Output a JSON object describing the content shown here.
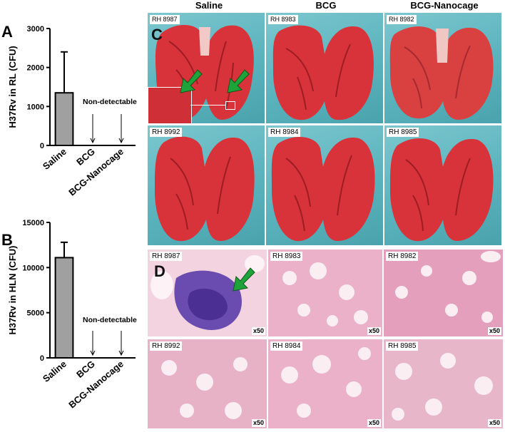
{
  "panels": {
    "a": "A",
    "b": "B",
    "c": "C",
    "d": "D"
  },
  "column_headers": [
    "Saline",
    "BCG",
    "BCG-Nanocage"
  ],
  "lung_images": {
    "row1": [
      "RH 8987",
      "RH 8983",
      "RH 8982"
    ],
    "row2": [
      "RH 8992",
      "RH 8984",
      "RH 8985"
    ]
  },
  "histology_images": {
    "row1": [
      "RH 8987",
      "RH 8983",
      "RH 8982"
    ],
    "row2": [
      "RH 8992",
      "RH 8984",
      "RH 8985"
    ],
    "magnification": "x50"
  },
  "colors": {
    "bar_fill": "#a0a0a0",
    "arrow_green": "#1ea33a",
    "lung_tissue": "#d8323a",
    "background_blue": "#5bb3bd",
    "he_stain": "#f0b8cf"
  },
  "chart_data": [
    {
      "type": "bar",
      "panel": "A",
      "categories": [
        "Saline",
        "BCG",
        "BCG-Nanocage"
      ],
      "values": [
        1350,
        null,
        null
      ],
      "error": [
        1050,
        null,
        null
      ],
      "ylabel": "H37Rv in RL (CFU)",
      "ylim": [
        0,
        3000
      ],
      "yticks": [
        "0",
        "1000",
        "2000",
        "3000"
      ],
      "annotation": "Non-detectable"
    },
    {
      "type": "bar",
      "panel": "B",
      "categories": [
        "Saline",
        "BCG",
        "BCG-Nanocage"
      ],
      "values": [
        11100,
        null,
        null
      ],
      "error": [
        1700,
        null,
        null
      ],
      "ylabel": "H37Rv in HLN (CFU)",
      "ylim": [
        0,
        15000
      ],
      "yticks": [
        "0",
        "5000",
        "10000",
        "15000"
      ],
      "annotation": "Non-detectable"
    }
  ]
}
